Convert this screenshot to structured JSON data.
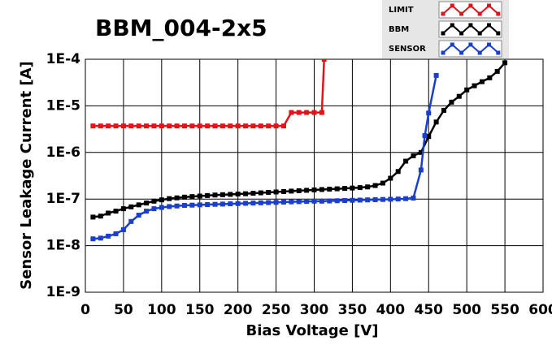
{
  "chart_data": {
    "type": "line",
    "title": "BBM_004-2x5",
    "x_label": "Bias Voltage [V]",
    "y_label": "Sensor Leakage Current [A]",
    "log_y": true,
    "grid": true,
    "legend": "top-right",
    "xlim": [
      0,
      600
    ],
    "xticks": [
      0,
      50,
      100,
      150,
      200,
      250,
      300,
      350,
      400,
      450,
      500,
      550,
      600
    ],
    "ylim": [
      1e-09,
      0.0001
    ],
    "yticks": [
      {
        "value": 1e-09,
        "label": "1E-9"
      },
      {
        "value": 1e-08,
        "label": "1E-8"
      },
      {
        "value": 1e-07,
        "label": "1E-7"
      },
      {
        "value": 1e-06,
        "label": "1E-6"
      },
      {
        "value": 1e-05,
        "label": "1E-5"
      },
      {
        "value": 0.0001,
        "label": "1E-4"
      }
    ],
    "series": [
      {
        "name": "LIMIT",
        "color": "#e0141b",
        "x": [
          10,
          20,
          30,
          40,
          50,
          60,
          70,
          80,
          90,
          100,
          110,
          120,
          130,
          140,
          150,
          160,
          170,
          180,
          190,
          200,
          210,
          220,
          230,
          240,
          250,
          260,
          270,
          280,
          290,
          300,
          310,
          313
        ],
        "values": [
          3.7e-06,
          3.7e-06,
          3.7e-06,
          3.7e-06,
          3.7e-06,
          3.7e-06,
          3.7e-06,
          3.7e-06,
          3.7e-06,
          3.7e-06,
          3.7e-06,
          3.7e-06,
          3.7e-06,
          3.7e-06,
          3.7e-06,
          3.7e-06,
          3.7e-06,
          3.7e-06,
          3.7e-06,
          3.7e-06,
          3.7e-06,
          3.7e-06,
          3.7e-06,
          3.7e-06,
          3.7e-06,
          3.7e-06,
          7.2e-06,
          7.2e-06,
          7.2e-06,
          7.2e-06,
          7.2e-06,
          0.0001
        ]
      },
      {
        "name": "BBM",
        "color": "#000000",
        "x": [
          10,
          20,
          30,
          40,
          50,
          60,
          70,
          80,
          90,
          100,
          110,
          120,
          130,
          140,
          150,
          160,
          170,
          180,
          190,
          200,
          210,
          220,
          230,
          240,
          250,
          260,
          270,
          280,
          290,
          300,
          310,
          320,
          330,
          340,
          350,
          360,
          370,
          380,
          390,
          400,
          410,
          420,
          430,
          440,
          450,
          460,
          470,
          480,
          490,
          500,
          510,
          520,
          530,
          540,
          550
        ],
        "values": [
          4.1e-08,
          4.3e-08,
          5e-08,
          5.5e-08,
          6.2e-08,
          6.8e-08,
          7.5e-08,
          8.2e-08,
          9e-08,
          9.6e-08,
          1.02e-07,
          1.06e-07,
          1.1e-07,
          1.13e-07,
          1.16e-07,
          1.19e-07,
          1.22e-07,
          1.24e-07,
          1.26e-07,
          1.28e-07,
          1.3e-07,
          1.33e-07,
          1.36e-07,
          1.39e-07,
          1.42e-07,
          1.45e-07,
          1.48e-07,
          1.51e-07,
          1.54e-07,
          1.57e-07,
          1.6e-07,
          1.63e-07,
          1.66e-07,
          1.69e-07,
          1.72e-07,
          1.76e-07,
          1.82e-07,
          1.95e-07,
          2.2e-07,
          2.8e-07,
          3.9e-07,
          6.5e-07,
          8.5e-07,
          1e-06,
          2.2e-06,
          4.5e-06,
          8e-06,
          1.2e-05,
          1.6e-05,
          2.2e-05,
          2.7e-05,
          3.3e-05,
          4e-05,
          5.5e-05,
          8.4e-05
        ]
      },
      {
        "name": "SENSOR",
        "color": "#1a3fcc",
        "x": [
          10,
          20,
          30,
          40,
          50,
          60,
          70,
          80,
          90,
          100,
          110,
          120,
          130,
          140,
          150,
          160,
          170,
          180,
          190,
          200,
          210,
          220,
          230,
          240,
          250,
          260,
          270,
          280,
          290,
          300,
          310,
          320,
          330,
          340,
          350,
          360,
          370,
          380,
          390,
          400,
          410,
          420,
          430,
          440,
          445,
          450,
          460
        ],
        "values": [
          1.4e-08,
          1.45e-08,
          1.6e-08,
          1.8e-08,
          2.2e-08,
          3.3e-08,
          4.5e-08,
          5.5e-08,
          6.2e-08,
          6.6e-08,
          6.9e-08,
          7.1e-08,
          7.3e-08,
          7.4e-08,
          7.5e-08,
          7.6e-08,
          7.7e-08,
          7.8e-08,
          7.9e-08,
          8e-08,
          8.1e-08,
          8.2e-08,
          8.3e-08,
          8.4e-08,
          8.5e-08,
          8.6e-08,
          8.7e-08,
          8.8e-08,
          8.9e-08,
          9e-08,
          9e-08,
          9.1e-08,
          9.2e-08,
          9.3e-08,
          9.4e-08,
          9.5e-08,
          9.6e-08,
          9.7e-08,
          9.8e-08,
          9.9e-08,
          1e-07,
          1.02e-07,
          1.05e-07,
          4.2e-07,
          2.3e-06,
          7e-06,
          4.5e-05
        ]
      }
    ]
  }
}
